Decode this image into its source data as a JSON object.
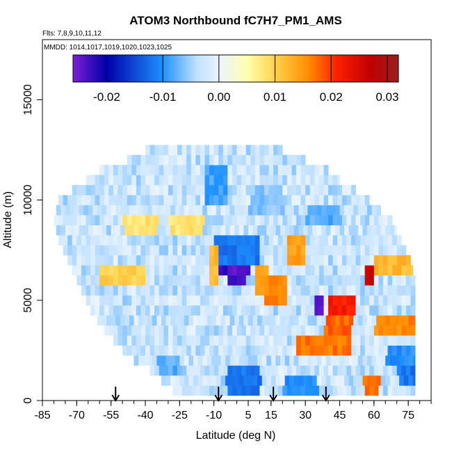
{
  "chart_data": {
    "type": "heatmap",
    "title": "ATOM3 Northbound fC7H7_PM1_AMS",
    "subtitle_flights": "Flts: 7,8,9,10,11,12",
    "subtitle_dates": "MMDD: 1014,1017,1019,1020,1023,1025",
    "xlabel": "Latitude (deg N)",
    "ylabel": "Altitude (m)",
    "xlim": [
      -85,
      85
    ],
    "ylim": [
      0,
      18000
    ],
    "x_ticks": [
      -85,
      -70,
      -55,
      -40,
      -25,
      -10,
      5,
      15,
      30,
      45,
      60,
      75
    ],
    "x_tick_labels": [
      "-85",
      "-70",
      "-55",
      "-40",
      "-25",
      "-10",
      "5",
      "15",
      "30",
      "45",
      "60",
      "75"
    ],
    "y_ticks": [
      0,
      5000,
      10000,
      15000
    ],
    "y_tick_labels": [
      "0",
      "5000",
      "10000",
      "15000"
    ],
    "colorbar": {
      "min": -0.026,
      "max": 0.032,
      "ticks": [
        -0.02,
        -0.01,
        0.0,
        0.01,
        0.02,
        0.03
      ],
      "tick_labels": [
        "-0.02",
        "-0.01",
        "0.00",
        "0.01",
        "0.02",
        "0.03"
      ],
      "stops": [
        {
          "v": -0.026,
          "c": "#7b1fd6"
        },
        {
          "v": -0.02,
          "c": "#0000a8"
        },
        {
          "v": -0.01,
          "c": "#1e90ff"
        },
        {
          "v": -0.004,
          "c": "#bfe0ff"
        },
        {
          "v": 0.0,
          "c": "#eaf4ff"
        },
        {
          "v": 0.005,
          "c": "#ffffb0"
        },
        {
          "v": 0.01,
          "c": "#ffd24d"
        },
        {
          "v": 0.016,
          "c": "#ff8c00"
        },
        {
          "v": 0.021,
          "c": "#ff2000"
        },
        {
          "v": 0.027,
          "c": "#c00000"
        },
        {
          "v": 0.032,
          "c": "#9a1f1f"
        }
      ]
    },
    "arrow_latitudes": [
      -53,
      -8,
      16,
      39
    ],
    "altitude_bins_m": [
      500,
      1000,
      1500,
      2000,
      2500,
      3000,
      3500,
      4000,
      4500,
      5000,
      5500,
      6000,
      6500,
      7000,
      7500,
      8000,
      8500,
      9000,
      9500,
      10000,
      10500,
      11000,
      11500,
      12000,
      12500
    ],
    "lat_extent_by_altitude": [
      [
        -28,
        78
      ],
      [
        -33,
        78
      ],
      [
        -38,
        78
      ],
      [
        -45,
        78
      ],
      [
        -50,
        78
      ],
      [
        -54,
        78
      ],
      [
        -58,
        78
      ],
      [
        -61,
        78
      ],
      [
        -64,
        78
      ],
      [
        -66,
        78
      ],
      [
        -68,
        78
      ],
      [
        -70,
        78
      ],
      [
        -72,
        77
      ],
      [
        -74,
        76
      ],
      [
        -76,
        74
      ],
      [
        -78,
        72
      ],
      [
        -79,
        70
      ],
      [
        -80,
        68
      ],
      [
        -79,
        63
      ],
      [
        -78,
        58
      ],
      [
        -72,
        52
      ],
      [
        -66,
        45
      ],
      [
        -60,
        40
      ],
      [
        -48,
        30
      ],
      [
        -40,
        20
      ]
    ],
    "features": [
      {
        "lat": [
          -8,
          5
        ],
        "alt": [
          6500,
          7500
        ],
        "value": -0.022
      },
      {
        "lat": [
          -4,
          3
        ],
        "alt": [
          6000,
          7000
        ],
        "value": -0.024
      },
      {
        "lat": [
          -10,
          10
        ],
        "alt": [
          7000,
          8000
        ],
        "value": -0.012
      },
      {
        "lat": [
          -12,
          -8
        ],
        "alt": [
          6000,
          7500
        ],
        "value": 0.012
      },
      {
        "lat": [
          8,
          14
        ],
        "alt": [
          5500,
          6500
        ],
        "value": 0.014
      },
      {
        "lat": [
          12,
          22
        ],
        "alt": [
          5000,
          6000
        ],
        "value": 0.016
      },
      {
        "lat": [
          22,
          30
        ],
        "alt": [
          7000,
          8000
        ],
        "value": 0.014
      },
      {
        "lat": [
          -50,
          -35
        ],
        "alt": [
          8500,
          9000
        ],
        "value": 0.008
      },
      {
        "lat": [
          -60,
          -40
        ],
        "alt": [
          6000,
          6500
        ],
        "value": 0.01
      },
      {
        "lat": [
          -30,
          -15
        ],
        "alt": [
          8500,
          9000
        ],
        "value": 0.008
      },
      {
        "lat": [
          40,
          52
        ],
        "alt": [
          4500,
          5000
        ],
        "value": 0.022
      },
      {
        "lat": [
          34,
          38
        ],
        "alt": [
          4500,
          5000
        ],
        "value": -0.025
      },
      {
        "lat": [
          38,
          50
        ],
        "alt": [
          3500,
          4000
        ],
        "value": 0.018
      },
      {
        "lat": [
          56,
          60
        ],
        "alt": [
          6000,
          6500
        ],
        "value": 0.027
      },
      {
        "lat": [
          60,
          78
        ],
        "alt": [
          6500,
          7000
        ],
        "value": 0.012
      },
      {
        "lat": [
          25,
          50
        ],
        "alt": [
          2500,
          3000
        ],
        "value": 0.017
      },
      {
        "lat": [
          60,
          78
        ],
        "alt": [
          3500,
          4000
        ],
        "value": 0.016
      },
      {
        "lat": [
          65,
          78
        ],
        "alt": [
          2000,
          2500
        ],
        "value": -0.01
      },
      {
        "lat": [
          70,
          78
        ],
        "alt": [
          1000,
          1500
        ],
        "value": -0.012
      },
      {
        "lat": [
          55,
          62
        ],
        "alt": [
          500,
          1000
        ],
        "value": 0.018
      },
      {
        "lat": [
          -5,
          10
        ],
        "alt": [
          500,
          1500
        ],
        "value": -0.012
      },
      {
        "lat": [
          -35,
          -25
        ],
        "alt": [
          1500,
          2000
        ],
        "value": -0.008
      },
      {
        "lat": [
          20,
          35
        ],
        "alt": [
          500,
          1000
        ],
        "value": -0.01
      },
      {
        "lat": [
          -15,
          -5
        ],
        "alt": [
          10000,
          11500
        ],
        "value": -0.009
      },
      {
        "lat": [
          5,
          20
        ],
        "alt": [
          9500,
          10500
        ],
        "value": -0.006
      },
      {
        "lat": [
          30,
          45
        ],
        "alt": [
          9000,
          9500
        ],
        "value": -0.008
      }
    ]
  }
}
